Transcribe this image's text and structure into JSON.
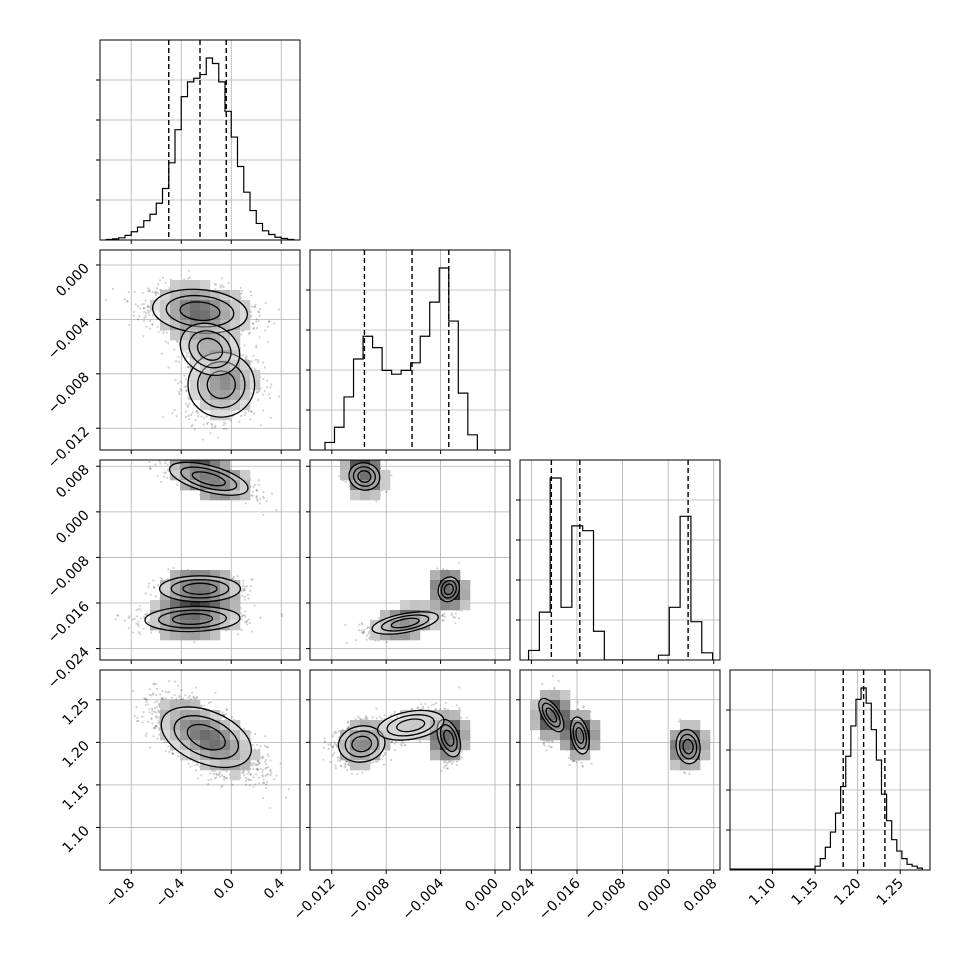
{
  "chart_data": {
    "type": "corner",
    "grid": true,
    "params": [
      {
        "range": [
          -1.05,
          0.55
        ],
        "ticks": [
          "−0.8",
          "−0.4",
          "0.0",
          "0.4"
        ],
        "tick_values": [
          -0.8,
          -0.4,
          0.0,
          0.4
        ],
        "quantiles": [
          -0.5,
          -0.25,
          -0.04
        ],
        "hist": {
          "bins": [
            -1.0,
            -0.95,
            -0.9,
            -0.85,
            -0.8,
            -0.75,
            -0.7,
            -0.65,
            -0.6,
            -0.55,
            -0.5,
            -0.45,
            -0.4,
            -0.35,
            -0.3,
            -0.25,
            -0.2,
            -0.15,
            -0.1,
            -0.05,
            0.0,
            0.05,
            0.1,
            0.15,
            0.2,
            0.25,
            0.3,
            0.35,
            0.4,
            0.45,
            0.5
          ],
          "counts": [
            0.3,
            0.6,
            1.2,
            2.5,
            4.5,
            7.0,
            10.5,
            14.0,
            20.0,
            28.0,
            42.0,
            60.0,
            78.0,
            86.0,
            88.0,
            90.0,
            99.0,
            96.0,
            86.0,
            70.0,
            56.0,
            40.0,
            26.0,
            16.0,
            9.0,
            5.0,
            3.0,
            1.5,
            0.8,
            0.3
          ]
        }
      },
      {
        "range": [
          -0.0136,
          0.0011
        ],
        "ticks": [
          "−0.012",
          "−0.008",
          "−0.004",
          "0.000"
        ],
        "tick_values": [
          -0.012,
          -0.008,
          -0.004,
          0.0
        ],
        "quantiles": [
          -0.0096,
          -0.0061,
          -0.0034
        ],
        "hist": {
          "bins": [
            -0.0125,
            -0.0118,
            -0.0111,
            -0.0104,
            -0.0097,
            -0.009,
            -0.0083,
            -0.0076,
            -0.0069,
            -0.0062,
            -0.0055,
            -0.0048,
            -0.0041,
            -0.0034,
            -0.0027,
            -0.002,
            -0.0013
          ],
          "counts": [
            4,
            12,
            28,
            48,
            60,
            54,
            42,
            40,
            42,
            46,
            60,
            78,
            96,
            68,
            30,
            8
          ]
        }
      },
      {
        "range": [
          -0.026,
          0.0091
        ],
        "ticks": [
          "−0.024",
          "−0.016",
          "−0.008",
          "0.000",
          "0.008"
        ],
        "tick_values": [
          -0.024,
          -0.016,
          -0.008,
          0.0,
          0.008
        ],
        "quantiles": [
          -0.0205,
          -0.0155,
          0.0035
        ],
        "hist": {
          "bins": [
            -0.0245,
            -0.0226,
            -0.0207,
            -0.0188,
            -0.0169,
            -0.015,
            -0.0131,
            -0.0112,
            -0.0093,
            -0.0074,
            -0.0055,
            -0.0036,
            -0.0017,
            0.0002,
            0.0021,
            0.004,
            0.0059,
            0.0078
          ],
          "counts": [
            4,
            20,
            76,
            22,
            56,
            54,
            12,
            0,
            0,
            0,
            0,
            0,
            2,
            22,
            60,
            16,
            3
          ]
        }
      },
      {
        "range": [
          1.05,
          1.285
        ],
        "ticks": [
          "1.10",
          "1.15",
          "1.20",
          "1.25"
        ],
        "tick_values": [
          1.1,
          1.15,
          1.2,
          1.25
        ],
        "quantiles": [
          1.183,
          1.207,
          1.232
        ],
        "hist": {
          "bins": [
            1.05,
            1.0625,
            1.075,
            1.0875,
            1.1,
            1.1125,
            1.125,
            1.1375,
            1.15,
            1.156,
            1.162,
            1.168,
            1.174,
            1.18,
            1.186,
            1.192,
            1.198,
            1.204,
            1.21,
            1.216,
            1.222,
            1.228,
            1.234,
            1.24,
            1.246,
            1.252,
            1.258,
            1.264,
            1.27,
            1.276
          ],
          "counts": [
            0.5,
            0.5,
            0.5,
            0.5,
            0.5,
            0.5,
            0.5,
            0.5,
            2,
            6,
            12,
            20,
            30,
            44,
            60,
            76,
            90,
            96,
            88,
            74,
            58,
            40,
            26,
            16,
            10,
            6,
            3,
            2,
            1
          ]
        }
      }
    ],
    "pairs": [
      {
        "row": 1,
        "col": 0,
        "blobs": [
          {
            "cx": -0.25,
            "cy": -0.0034,
            "sx": 0.2,
            "sy": 0.0009,
            "rho": -0.2,
            "n": 1400
          },
          {
            "cx": -0.08,
            "cy": -0.0088,
            "sx": 0.14,
            "sy": 0.0013,
            "rho": 0.1,
            "n": 1000
          },
          {
            "cx": -0.17,
            "cy": -0.0062,
            "sx": 0.13,
            "sy": 0.0012,
            "rho": -0.6,
            "n": 500
          }
        ]
      },
      {
        "row": 2,
        "col": 0,
        "blobs": [
          {
            "cx": -0.18,
            "cy": 0.0058,
            "sx": 0.17,
            "sy": 0.0016,
            "rho": -0.7,
            "n": 700
          },
          {
            "cx": -0.25,
            "cy": -0.0135,
            "sx": 0.17,
            "sy": 0.0012,
            "rho": 0.0,
            "n": 700
          },
          {
            "cx": -0.31,
            "cy": -0.0188,
            "sx": 0.2,
            "sy": 0.0012,
            "rho": 0.1,
            "n": 800
          }
        ]
      },
      {
        "row": 2,
        "col": 1,
        "blobs": [
          {
            "cx": -0.0096,
            "cy": 0.0062,
            "sx": 0.0006,
            "sy": 0.0014,
            "rho": -0.3,
            "n": 700
          },
          {
            "cx": -0.0034,
            "cy": -0.0136,
            "sx": 0.0004,
            "sy": 0.0013,
            "rho": -0.3,
            "n": 700
          },
          {
            "cx": -0.0066,
            "cy": -0.0195,
            "sx": 0.0013,
            "sy": 0.0011,
            "rho": 0.6,
            "n": 800
          }
        ]
      },
      {
        "row": 3,
        "col": 0,
        "blobs": [
          {
            "cx": -0.2,
            "cy": 1.206,
            "sx": 0.2,
            "sy": 0.021,
            "rho": -0.65,
            "n": 2400
          }
        ]
      },
      {
        "row": 3,
        "col": 1,
        "blobs": [
          {
            "cx": -0.0098,
            "cy": 1.198,
            "sx": 0.0009,
            "sy": 0.012,
            "rho": 0.2,
            "n": 1000
          },
          {
            "cx": -0.0034,
            "cy": 1.205,
            "sx": 0.0004,
            "sy": 0.013,
            "rho": 0.2,
            "n": 1000
          },
          {
            "cx": -0.0062,
            "cy": 1.22,
            "sx": 0.0013,
            "sy": 0.01,
            "rho": 0.4,
            "n": 500
          }
        ]
      },
      {
        "row": 3,
        "col": 2,
        "blobs": [
          {
            "cx": -0.0205,
            "cy": 1.232,
            "sx": 0.0008,
            "sy": 0.013,
            "rho": 0.3,
            "n": 800
          },
          {
            "cx": -0.0155,
            "cy": 1.208,
            "sx": 0.0008,
            "sy": 0.012,
            "rho": 0.1,
            "n": 800
          },
          {
            "cx": 0.0035,
            "cy": 1.195,
            "sx": 0.0011,
            "sy": 0.011,
            "rho": 0.1,
            "n": 800
          }
        ]
      }
    ]
  }
}
